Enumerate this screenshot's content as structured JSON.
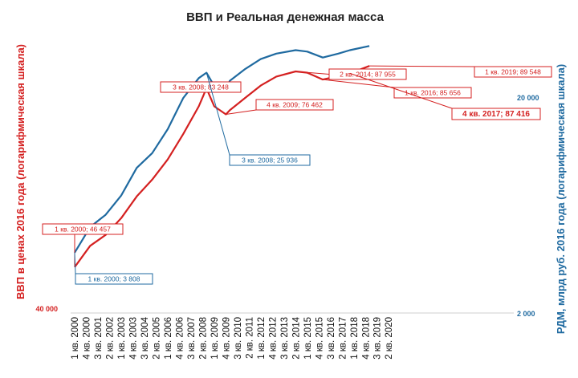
{
  "chart_data": {
    "type": "line",
    "title": "ВВП и Реальная денежная масса",
    "y_left_label": "ВВП в ценах 2016 года (логарифмическая шкала)",
    "y_right_label": "РДМ, млрд руб. 2016 года (логарифмическая шкала)",
    "y_left_scale": "log",
    "y_right_scale": "log",
    "y_left_ticks": [
      {
        "value": 40000,
        "label": "40 000"
      }
    ],
    "y_right_ticks": [
      {
        "value": 2000,
        "label": "2 000"
      },
      {
        "value": 20000,
        "label": "20 000"
      }
    ],
    "y_left_range": [
      40000,
      100000
    ],
    "y_right_range": [
      2000,
      40000
    ],
    "grid": false,
    "x_tick_labels": [
      "1 кв. 2000",
      "4 кв. 2000",
      "3 кв. 2001",
      "2 кв. 2002",
      "1 кв. 2003",
      "4 кв. 2003",
      "3 кв. 2004",
      "2 кв. 2005",
      "1 кв. 2006",
      "4 кв. 2006",
      "3 кв. 2007",
      "2 кв. 2008",
      "1 кв. 2009",
      "4 кв. 2009",
      "3 кв. 2010",
      "2 кв. 2011",
      "1 кв. 2012",
      "4 кв. 2012",
      "3 кв. 2013",
      "2 кв. 2014",
      "1 кв. 2015",
      "4 кв. 2015",
      "3 кв. 2016",
      "2 кв. 2017",
      "1 кв. 2018",
      "4 кв. 2018",
      "3 кв. 2019",
      "2 кв. 2020"
    ],
    "series": [
      {
        "name": "ВВП",
        "axis": "left",
        "color": "#d42020",
        "points": [
          [
            "1 кв. 2000",
            46457
          ],
          [
            "1 кв. 2001",
            49800
          ],
          [
            "1 кв. 2002",
            51600
          ],
          [
            "1 кв. 2003",
            54500
          ],
          [
            "1 кв. 2004",
            58500
          ],
          [
            "1 кв. 2005",
            61800
          ],
          [
            "1 кв. 2006",
            66000
          ],
          [
            "1 кв. 2007",
            71700
          ],
          [
            "1 кв. 2008",
            78500
          ],
          [
            "3 кв. 2008",
            83248
          ],
          [
            "1 кв. 2009",
            78500
          ],
          [
            "4 кв. 2009",
            76462
          ],
          [
            "1 кв. 2010",
            77500
          ],
          [
            "1 кв. 2011",
            80700
          ],
          [
            "1 кв. 2012",
            84000
          ],
          [
            "1 кв. 2013",
            86500
          ],
          [
            "2 кв. 2014",
            87955
          ],
          [
            "1 кв. 2015",
            87600
          ],
          [
            "1 кв. 2016",
            85656
          ],
          [
            "1 кв. 2017",
            86600
          ],
          [
            "4 кв. 2017",
            87416
          ],
          [
            "1 кв. 2019",
            89548
          ]
        ]
      },
      {
        "name": "РДМ",
        "axis": "right",
        "color": "#1f6aa0",
        "points": [
          [
            "1 кв. 2000",
            3808
          ],
          [
            "1 кв. 2001",
            5000
          ],
          [
            "1 кв. 2002",
            5700
          ],
          [
            "1 кв. 2003",
            7000
          ],
          [
            "1 кв. 2004",
            9400
          ],
          [
            "1 кв. 2005",
            11000
          ],
          [
            "1 кв. 2006",
            14200
          ],
          [
            "1 кв. 2007",
            19800
          ],
          [
            "1 кв. 2008",
            24500
          ],
          [
            "3 кв. 2008",
            25936
          ],
          [
            "1 кв. 2009",
            22500
          ],
          [
            "4 кв. 2009",
            21500
          ],
          [
            "1 кв. 2010",
            23800
          ],
          [
            "1 кв. 2011",
            27000
          ],
          [
            "1 кв. 2012",
            30000
          ],
          [
            "1 кв. 2013",
            31800
          ],
          [
            "2 кв. 2014",
            33000
          ],
          [
            "1 кв. 2015",
            32500
          ],
          [
            "1 кв. 2016",
            30500
          ],
          [
            "1 кв. 2017",
            31800
          ],
          [
            "4 кв. 2017",
            33000
          ],
          [
            "1 кв. 2019",
            34500
          ]
        ]
      }
    ],
    "annotations": [
      {
        "text": "1 кв. 2000; 46 457",
        "series": "ВВП",
        "x": "1 кв. 2000",
        "color": "#d42020"
      },
      {
        "text": "1 кв. 2000; 3 808",
        "series": "РДМ",
        "x": "1 кв. 2000",
        "color": "#1f6aa0"
      },
      {
        "text": "3 кв. 2008; 83 248",
        "series": "ВВП",
        "x": "3 кв. 2008",
        "color": "#d42020"
      },
      {
        "text": "3 кв. 2008; 25 936",
        "series": "РДМ",
        "x": "3 кв. 2008",
        "color": "#1f6aa0"
      },
      {
        "text": "4 кв. 2009; 76 462",
        "series": "ВВП",
        "x": "4 кв. 2009",
        "color": "#d42020"
      },
      {
        "text": "2 кв. 2014; 87 955",
        "series": "ВВП",
        "x": "2 кв. 2014",
        "color": "#d42020"
      },
      {
        "text": "1 кв. 2016; 85 656",
        "series": "ВВП",
        "x": "1 кв. 2016",
        "color": "#d42020"
      },
      {
        "text": "4 кв. 2017; 87 416",
        "series": "ВВП",
        "x": "4 кв. 2017",
        "color": "#d42020"
      },
      {
        "text": "1 кв. 2019; 89 548",
        "series": "ВВП",
        "x": "1 кв. 2019",
        "color": "#d42020"
      }
    ]
  }
}
